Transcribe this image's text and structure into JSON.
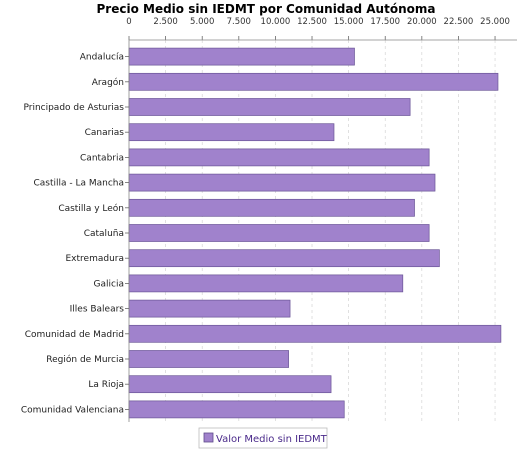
{
  "chart_data": {
    "type": "bar",
    "orientation": "horizontal",
    "title": "Precio Medio sin IEDMT por Comunidad Autónoma",
    "xlim": [
      0,
      26500
    ],
    "ticks": [
      0,
      2500,
      5000,
      7500,
      10000,
      12500,
      15000,
      17500,
      20000,
      22500,
      25000
    ],
    "tick_labels": [
      "0",
      "2.500",
      "5.000",
      "7.500",
      "10.000",
      "12.500",
      "15.000",
      "17.500",
      "20.000",
      "22.500",
      "25.000"
    ],
    "x_axis_position": "top",
    "grid": true,
    "categories": [
      "Andalucía",
      "Aragón",
      "Principado de Asturias",
      "Canarias",
      "Cantabria",
      "Castilla - La Mancha",
      "Castilla y León",
      "Cataluña",
      "Extremadura",
      "Galicia",
      "Illes Balears",
      "Comunidad de Madrid",
      "Región de Murcia",
      "La Rioja",
      "Comunidad Valenciana"
    ],
    "series": [
      {
        "name": "Valor Medio sin IEDMT",
        "color": "#a082cc",
        "values": [
          15400,
          25200,
          19200,
          14000,
          20500,
          20900,
          19500,
          20500,
          21200,
          18700,
          11000,
          25400,
          10900,
          13800,
          14700
        ]
      }
    ],
    "legend_position": "bottom-center"
  }
}
